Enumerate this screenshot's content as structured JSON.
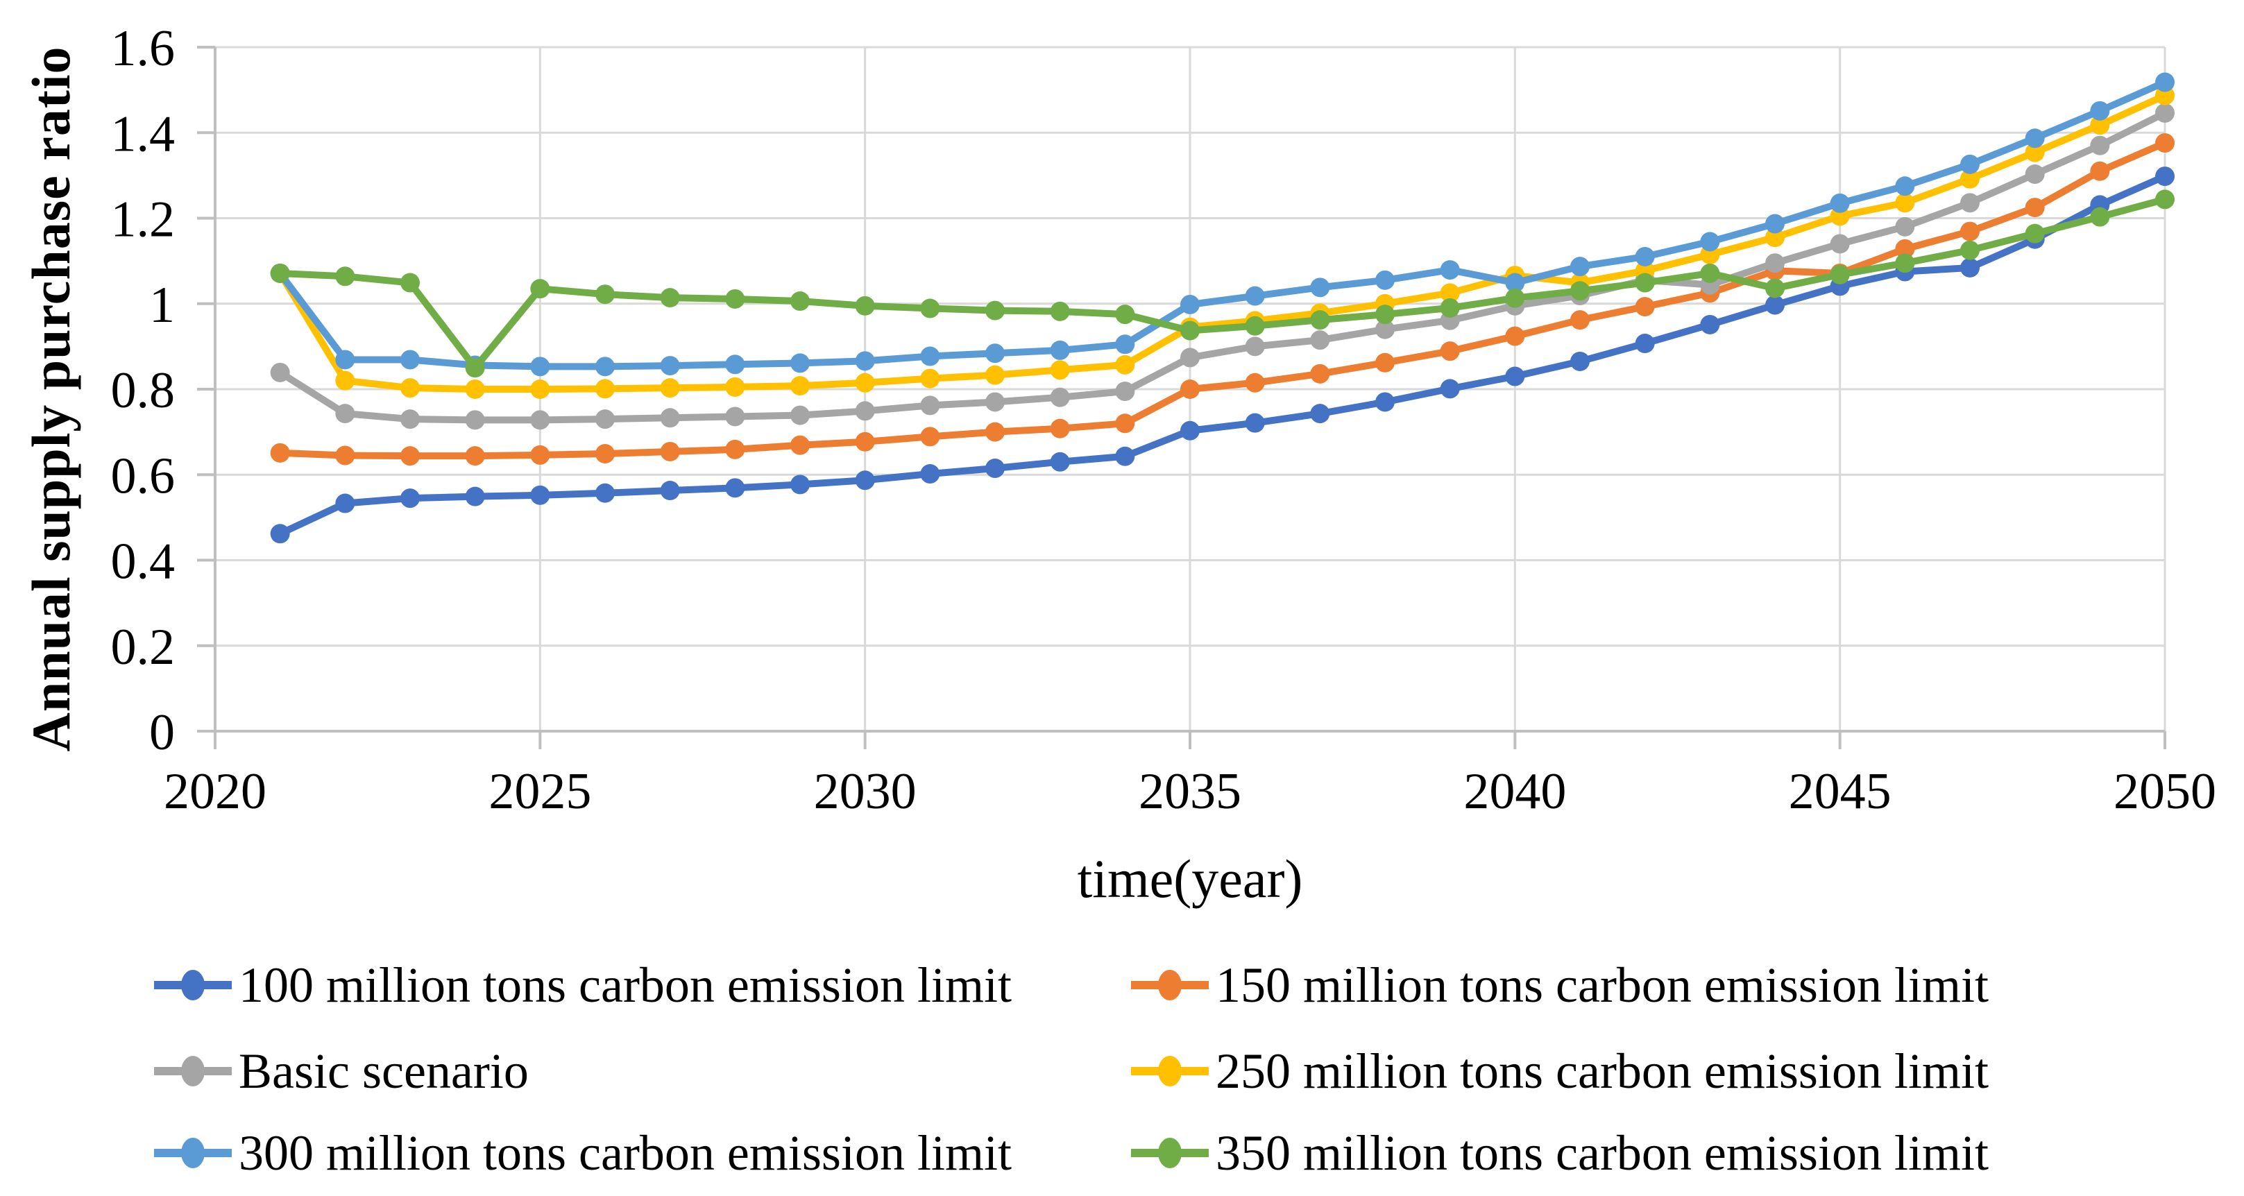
{
  "chart_data": {
    "type": "line",
    "title": "",
    "xlabel": "time(year)",
    "ylabel": "Annual supply purchase ratio",
    "xlim": [
      2020,
      2050
    ],
    "ylim": [
      0,
      1.6
    ],
    "grid": true,
    "legend_position": "bottom",
    "x_tick_labels": [
      "2020",
      "2025",
      "2030",
      "2035",
      "2040",
      "2045",
      "2050"
    ],
    "x_tick_values": [
      2020,
      2025,
      2030,
      2035,
      2040,
      2045,
      2050
    ],
    "y_tick_labels": [
      "0",
      "0.2",
      "0.4",
      "0.6",
      "0.8",
      "1",
      "1.2",
      "1.4",
      "1.6"
    ],
    "y_tick_values": [
      0,
      0.2,
      0.4,
      0.6,
      0.8,
      1.0,
      1.2,
      1.4,
      1.6
    ],
    "x": [
      2021,
      2022,
      2023,
      2024,
      2025,
      2026,
      2027,
      2028,
      2029,
      2030,
      2031,
      2032,
      2033,
      2034,
      2035,
      2036,
      2037,
      2038,
      2039,
      2040,
      2041,
      2042,
      2043,
      2044,
      2045,
      2046,
      2047,
      2048,
      2049,
      2050
    ],
    "series": [
      {
        "name": "100 million tons carbon emission limit",
        "color": "#4472C4",
        "values": [
          0.462,
          0.533,
          0.545,
          0.549,
          0.552,
          0.557,
          0.563,
          0.569,
          0.577,
          0.587,
          0.602,
          0.615,
          0.63,
          0.643,
          0.703,
          0.721,
          0.743,
          0.77,
          0.801,
          0.83,
          0.865,
          0.907,
          0.951,
          0.997,
          1.041,
          1.075,
          1.084,
          1.151,
          1.231,
          1.298
        ]
      },
      {
        "name": "150 million tons carbon emission limit",
        "color": "#ED7D31",
        "values": [
          0.651,
          0.645,
          0.644,
          0.644,
          0.646,
          0.649,
          0.654,
          0.659,
          0.669,
          0.677,
          0.689,
          0.7,
          0.708,
          0.72,
          0.8,
          0.815,
          0.836,
          0.862,
          0.889,
          0.924,
          0.962,
          0.993,
          1.025,
          1.077,
          1.071,
          1.128,
          1.169,
          1.225,
          1.31,
          1.376
        ]
      },
      {
        "name": "Basic scenario",
        "color": "#A5A5A5",
        "values": [
          0.839,
          0.743,
          0.73,
          0.728,
          0.728,
          0.73,
          0.733,
          0.736,
          0.739,
          0.749,
          0.762,
          0.77,
          0.781,
          0.795,
          0.874,
          0.9,
          0.915,
          0.94,
          0.961,
          0.995,
          1.019,
          1.055,
          1.044,
          1.095,
          1.14,
          1.18,
          1.236,
          1.303,
          1.37,
          1.446
        ]
      },
      {
        "name": "250 million tons carbon emission limit",
        "color": "#FFC000",
        "values": [
          1.071,
          0.82,
          0.803,
          0.8,
          0.8,
          0.801,
          0.803,
          0.805,
          0.808,
          0.815,
          0.825,
          0.833,
          0.845,
          0.857,
          0.945,
          0.96,
          0.978,
          1.0,
          1.025,
          1.066,
          1.049,
          1.077,
          1.115,
          1.155,
          1.205,
          1.236,
          1.292,
          1.354,
          1.418,
          1.487
        ]
      },
      {
        "name": "300 million tons carbon emission limit",
        "color": "#5B9BD5",
        "values": [
          1.071,
          0.869,
          0.869,
          0.856,
          0.853,
          0.853,
          0.855,
          0.858,
          0.861,
          0.866,
          0.877,
          0.884,
          0.891,
          0.905,
          0.998,
          1.018,
          1.038,
          1.055,
          1.079,
          1.049,
          1.087,
          1.11,
          1.145,
          1.187,
          1.235,
          1.275,
          1.326,
          1.387,
          1.451,
          1.518
        ]
      },
      {
        "name": "350 million tons carbon emission limit",
        "color": "#70AD47",
        "values": [
          1.071,
          1.064,
          1.049,
          0.85,
          1.035,
          1.022,
          1.014,
          1.011,
          1.006,
          0.995,
          0.989,
          0.984,
          0.982,
          0.975,
          0.937,
          0.948,
          0.962,
          0.975,
          0.99,
          1.013,
          1.03,
          1.049,
          1.071,
          1.036,
          1.068,
          1.095,
          1.125,
          1.164,
          1.203,
          1.244
        ]
      }
    ],
    "style": {
      "gridline_color": "#D9D9D9",
      "axis_color": "#BFBFBF",
      "text_color": "#000000",
      "line_width": 10,
      "marker_radius": 14
    }
  }
}
